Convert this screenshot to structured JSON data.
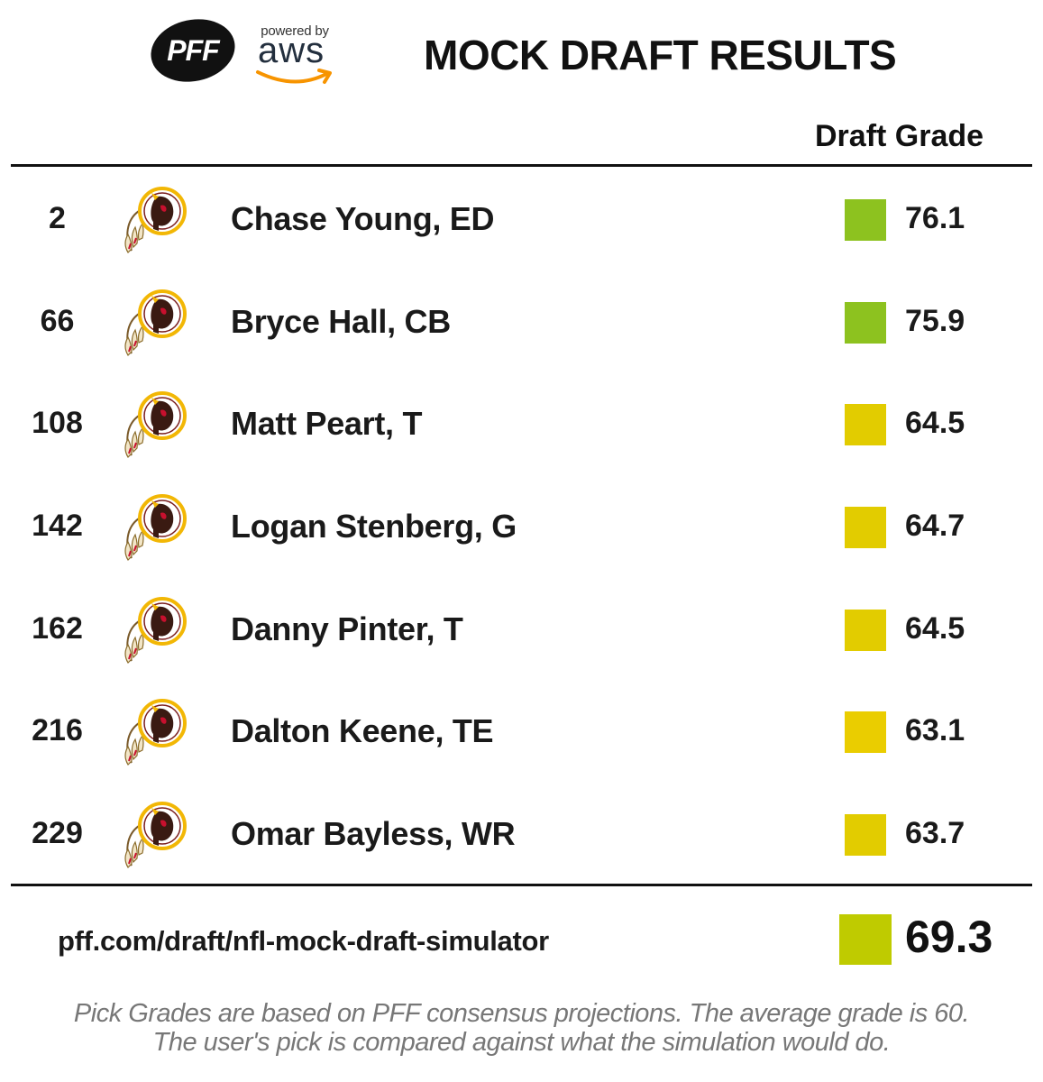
{
  "header": {
    "logo_icon": "pff-logo",
    "powered_by": "powered by",
    "aws_word": "aws",
    "title": "MOCK DRAFT RESULTS",
    "grade_column": "Draft Grade"
  },
  "picks": [
    {
      "pick": "2",
      "player": "Chase Young, ED",
      "grade": "76.1",
      "color": "#8dc21f"
    },
    {
      "pick": "66",
      "player": "Bryce Hall, CB",
      "grade": "75.9",
      "color": "#8dc21f"
    },
    {
      "pick": "108",
      "player": "Matt Peart, T",
      "grade": "64.5",
      "color": "#e2cc00"
    },
    {
      "pick": "142",
      "player": "Logan Stenberg, G",
      "grade": "64.7",
      "color": "#e2cc00"
    },
    {
      "pick": "162",
      "player": "Danny Pinter, T",
      "grade": "64.5",
      "color": "#e2cc00"
    },
    {
      "pick": "216",
      "player": "Dalton Keene, TE",
      "grade": "63.1",
      "color": "#eacd00"
    },
    {
      "pick": "229",
      "player": "Omar Bayless, WR",
      "grade": "63.7",
      "color": "#e2cc00"
    }
  ],
  "team_icon": "redskins-logo-icon",
  "footer": {
    "url": "pff.com/draft/nfl-mock-draft-simulator",
    "total_grade": "69.3",
    "total_color": "#bfcb00",
    "disclaimer_line1": "Pick Grades are based on PFF consensus projections. The average grade is 60.",
    "disclaimer_line2": "The user's pick is compared against what the simulation would do."
  }
}
